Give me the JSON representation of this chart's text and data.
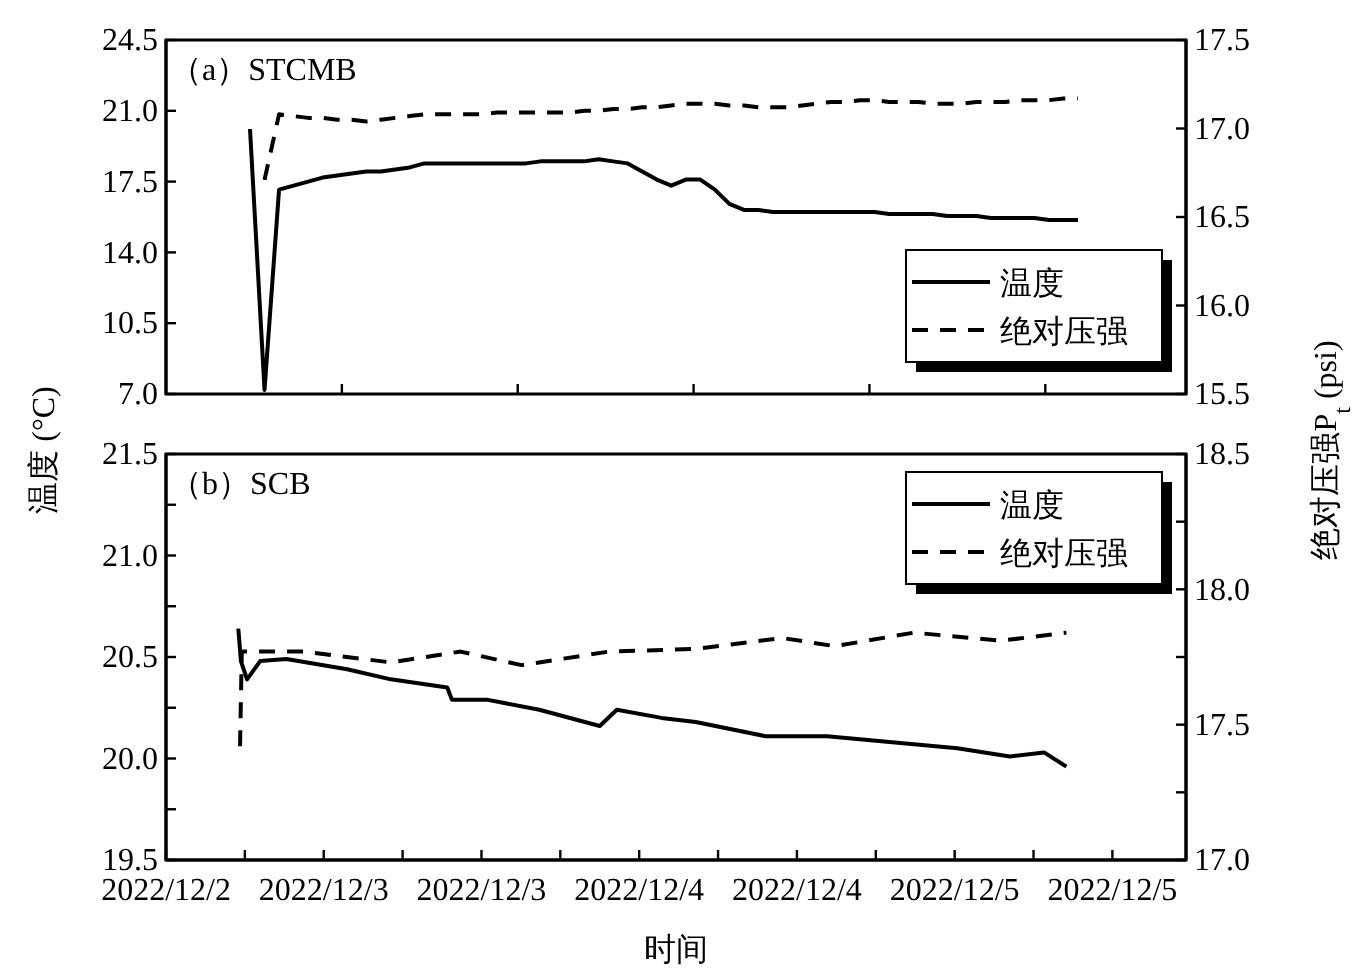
{
  "chart_data": [
    {
      "type": "line",
      "title": "（a）STCMB",
      "tick_labels": "y",
      "legend": "bottom right",
      "categories": [
        null,
        null,
        null,
        null,
        null,
        null,
        null,
        null,
        null,
        null,
        null,
        null,
        null,
        null,
        null,
        null,
        null,
        null,
        null,
        null,
        null,
        null,
        null,
        null,
        null,
        null,
        null,
        null,
        null,
        null,
        null,
        null,
        null,
        null,
        null,
        null,
        null,
        null,
        null,
        null,
        null,
        null,
        null,
        null,
        null,
        null,
        null,
        null,
        null,
        null,
        null,
        null,
        null,
        null,
        null,
        null,
        null,
        null
      ],
      "ylim": [
        7.0,
        24.5
      ],
      "yticks": [
        {
          "value": 7.0,
          "label": "7.0"
        },
        {
          "value": 10.5,
          "label": "10.5"
        },
        {
          "value": 14.0,
          "label": "14.0"
        },
        {
          "value": 17.5,
          "label": "17.5"
        },
        {
          "value": 21.0,
          "label": "21.0"
        },
        {
          "value": 24.5,
          "label": "24.5"
        }
      ],
      "y2lim": [
        15.5,
        17.5
      ],
      "y2ticks": [
        {
          "value": 15.5,
          "label": "15.5"
        },
        {
          "value": 16.0,
          "label": "16.0"
        },
        {
          "value": 16.5,
          "label": "16.5"
        },
        {
          "value": 17.0,
          "label": "17.0"
        },
        {
          "value": 17.5,
          "label": "17.5"
        }
      ],
      "series": [
        {
          "name": "温度",
          "color": "#000000",
          "line_style": "solid",
          "values": [
            20.1,
            7.2,
            17.1,
            17.3,
            17.5,
            17.7,
            17.8,
            17.9,
            18.0,
            18.0,
            18.1,
            18.2,
            18.4,
            18.4,
            18.4,
            18.4,
            18.4,
            18.4,
            18.4,
            18.4,
            18.5,
            18.5,
            18.5,
            18.5,
            18.6,
            18.5,
            18.4,
            18.0,
            17.6,
            17.3,
            17.6,
            17.6,
            17.1,
            16.4,
            16.1,
            16.1,
            16.0,
            16.0,
            16.0,
            16.0,
            16.0,
            16.0,
            16.0,
            16.0,
            15.9,
            15.9,
            15.9,
            15.9,
            15.8,
            15.8,
            15.8,
            15.7,
            15.7,
            15.7,
            15.7,
            15.6,
            15.6,
            15.6
          ]
        },
        {
          "name": "绝对压强",
          "color": "#000000",
          "line_style": "dashed",
          "axis": "y2",
          "values": [
            null,
            16.71,
            17.08,
            17.07,
            17.06,
            17.06,
            17.05,
            17.05,
            17.04,
            17.05,
            17.06,
            17.07,
            17.08,
            17.08,
            17.08,
            17.08,
            17.08,
            17.09,
            17.09,
            17.09,
            17.09,
            17.09,
            17.09,
            17.1,
            17.1,
            17.11,
            17.11,
            17.12,
            17.12,
            17.13,
            17.14,
            17.14,
            17.14,
            17.13,
            17.13,
            17.12,
            17.12,
            17.12,
            17.13,
            17.14,
            17.15,
            17.15,
            17.16,
            17.16,
            17.15,
            17.15,
            17.15,
            17.14,
            17.14,
            17.14,
            17.15,
            17.15,
            17.15,
            17.16,
            17.16,
            17.16,
            17.17,
            17.17
          ]
        }
      ]
    },
    {
      "type": "line",
      "title": "（b）SCB",
      "legend": "top right",
      "xlabel": "时间",
      "ylabel": "温度 (°C)",
      "y2label": "绝对压强P$_{t}$ (psi)",
      "xlim": [
        "2022-12-02T12:00",
        "2022-12-05T17:36"
      ],
      "xticks": [
        {
          "value": "2022-12-02T12:00",
          "label": "2022/12/2"
        },
        {
          "value": "2022-12-02T18:00",
          "label": null
        },
        {
          "value": "2022-12-03T00:00",
          "label": "2022/12/3"
        },
        {
          "value": "2022-12-03T06:00",
          "label": null
        },
        {
          "value": "2022-12-03T12:00",
          "label": "2022/12/3"
        },
        {
          "value": "2022-12-03T18:00",
          "label": null
        },
        {
          "value": "2022-12-04T00:00",
          "label": "2022/12/4"
        },
        {
          "value": "2022-12-04T06:00",
          "label": null
        },
        {
          "value": "2022-12-04T12:00",
          "label": "2022/12/4"
        },
        {
          "value": "2022-12-04T18:00",
          "label": null
        },
        {
          "value": "2022-12-05T00:00",
          "label": "2022/12/5"
        },
        {
          "value": "2022-12-05T06:00",
          "label": null
        },
        {
          "value": "2022-12-05T12:00",
          "label": "2022/12/5"
        }
      ],
      "ylim": [
        19.5,
        21.5
      ],
      "yticks": [
        {
          "value": 19.5,
          "label": "19.5"
        },
        {
          "value": 19.75,
          "label": null
        },
        {
          "value": 20.0,
          "label": "20.0"
        },
        {
          "value": 20.25,
          "label": null
        },
        {
          "value": 20.5,
          "label": "20.5"
        },
        {
          "value": 20.75,
          "label": null
        },
        {
          "value": 21.0,
          "label": "21.0"
        },
        {
          "value": 21.25,
          "label": null
        },
        {
          "value": 21.5,
          "label": "21.5"
        }
      ],
      "y2lim": [
        17.0,
        18.5
      ],
      "y2ticks": [
        {
          "value": 17.0,
          "label": "17.0"
        },
        {
          "value": 17.25,
          "label": null
        },
        {
          "value": 17.5,
          "label": "17.5"
        },
        {
          "value": 17.75,
          "label": null
        },
        {
          "value": 18.0,
          "label": "18.0"
        },
        {
          "value": 18.25,
          "label": null
        },
        {
          "value": 18.5,
          "label": "18.5"
        }
      ],
      "series": [
        {
          "name": "温度",
          "color": "#000000",
          "line_style": "solid",
          "x": [
            "2022-12-02T17:30",
            "2022-12-02T17:42",
            "2022-12-02T18:10",
            "2022-12-02T19:10",
            "2022-12-02T21:09",
            "2022-12-03T01:47",
            "2022-12-03T05:06",
            "2022-12-03T09:24",
            "2022-12-03T09:45",
            "2022-12-03T12:24",
            "2022-12-03T16:24",
            "2022-12-03T21:00",
            "2022-12-03T22:18",
            "2022-12-04T01:42",
            "2022-12-04T04:18",
            "2022-12-04T09:36",
            "2022-12-04T14:18",
            "2022-12-04T17:36",
            "2022-12-05T00:12",
            "2022-12-05T04:12",
            "2022-12-05T06:48",
            "2022-12-05T08:30"
          ],
          "values": [
            20.64,
            20.48,
            20.39,
            20.48,
            20.49,
            20.44,
            20.39,
            20.35,
            20.29,
            20.29,
            20.24,
            20.16,
            20.24,
            20.2,
            20.18,
            20.11,
            20.11,
            20.09,
            20.05,
            20.01,
            20.03,
            19.96
          ]
        },
        {
          "name": "绝对压强",
          "color": "#000000",
          "line_style": "dashed",
          "axis": "y2",
          "x": [
            "2022-12-02T17:38",
            "2022-12-02T17:46",
            "2022-12-02T19:10",
            "2022-12-02T22:30",
            "2022-12-03T05:06",
            "2022-12-03T10:24",
            "2022-12-03T15:03",
            "2022-12-03T21:42",
            "2022-12-04T04:18",
            "2022-12-04T10:54",
            "2022-12-04T14:54",
            "2022-12-04T20:54",
            "2022-12-05T03:30",
            "2022-12-05T08:30"
          ],
          "values": [
            17.42,
            17.77,
            17.77,
            17.77,
            17.73,
            17.77,
            17.72,
            17.77,
            17.78,
            17.82,
            17.79,
            17.84,
            17.81,
            17.84
          ]
        }
      ]
    }
  ]
}
